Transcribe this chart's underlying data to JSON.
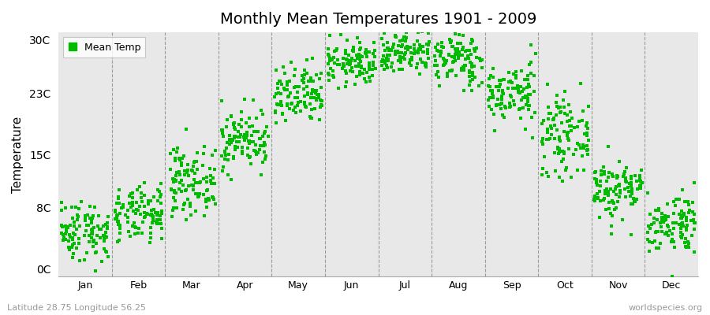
{
  "title": "Monthly Mean Temperatures 1901 - 2009",
  "ylabel": "Temperature",
  "subtitle_left": "Latitude 28.75 Longitude 56.25",
  "subtitle_right": "worldspecies.org",
  "yticks": [
    0,
    8,
    15,
    23,
    30
  ],
  "ytick_labels": [
    "0C",
    "8C",
    "15C",
    "23C",
    "30C"
  ],
  "months": [
    "Jan",
    "Feb",
    "Mar",
    "Apr",
    "May",
    "Jun",
    "Jul",
    "Aug",
    "Sep",
    "Oct",
    "Nov",
    "Dec"
  ],
  "dot_color": "#00BB00",
  "background_color": "#E8E8E8",
  "n_years": 109,
  "seed": 42,
  "month_means": [
    5.0,
    7.0,
    11.5,
    17.0,
    22.5,
    27.0,
    28.5,
    27.5,
    23.0,
    17.5,
    10.5,
    6.0
  ],
  "month_stds": [
    2.0,
    1.8,
    2.2,
    2.0,
    2.0,
    1.5,
    1.5,
    1.8,
    2.0,
    2.5,
    2.0,
    2.0
  ]
}
